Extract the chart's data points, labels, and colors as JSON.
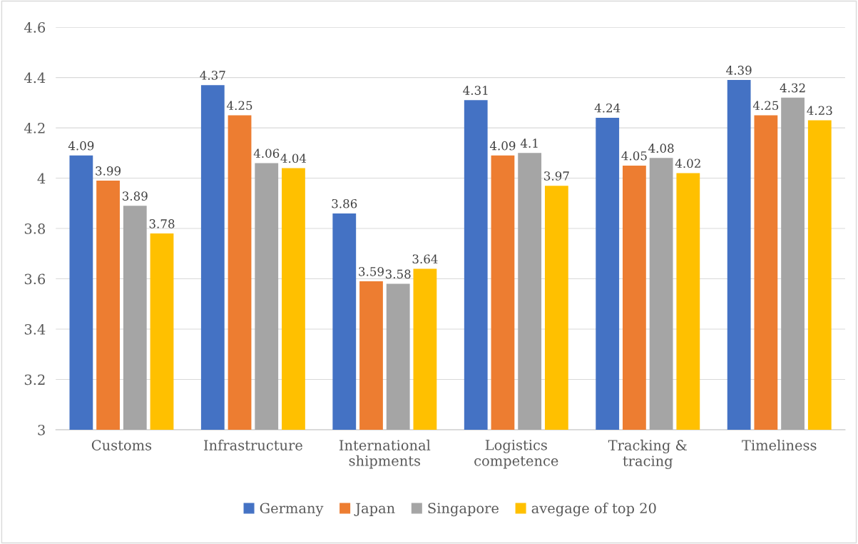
{
  "chart_data": {
    "type": "bar",
    "categories": [
      "Customs",
      "Infrastructure",
      "International\nshipments",
      "Logistics\ncompetence",
      "Tracking &\ntracing",
      "Timeliness"
    ],
    "series": [
      {
        "name": "Germany",
        "color": "#4472c4",
        "values": [
          4.09,
          4.37,
          3.86,
          4.31,
          4.24,
          4.39
        ]
      },
      {
        "name": "Japan",
        "color": "#ed7d31",
        "values": [
          3.99,
          4.25,
          3.59,
          4.09,
          4.05,
          4.25
        ]
      },
      {
        "name": "Singapore",
        "color": "#a5a5a5",
        "values": [
          3.89,
          4.06,
          3.58,
          4.1,
          4.08,
          4.32
        ]
      },
      {
        "name": "avegage of top 20",
        "color": "#ffc000",
        "values": [
          3.78,
          4.04,
          3.64,
          3.97,
          4.02,
          4.23
        ]
      }
    ],
    "ylim": [
      3,
      4.6
    ],
    "yticks": [
      3,
      3.2,
      3.4,
      3.6,
      3.8,
      4,
      4.2,
      4.4,
      4.6
    ],
    "grid": "y",
    "legend": "bottom",
    "data_labels": true
  }
}
